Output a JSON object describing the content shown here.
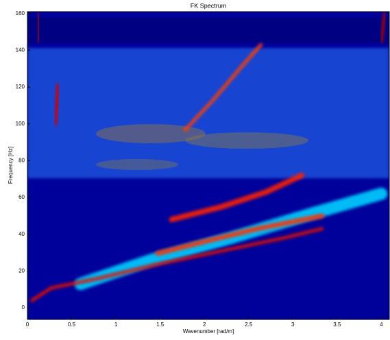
{
  "chart_data": {
    "type": "heatmap",
    "title": "FK Spectrum",
    "x_label": "Wavenumber [rad/m]",
    "y_label": "Frequency [Hz]",
    "xlim": [
      0,
      4.09
    ],
    "ylim": [
      -6.3,
      161
    ],
    "xticks": [
      0,
      0.5,
      1,
      1.5,
      2,
      2.5,
      3,
      3.5,
      4
    ],
    "yticks": [
      0,
      20,
      40,
      60,
      80,
      100,
      120,
      140,
      160
    ],
    "background": "#00009a",
    "ridges": [
      {
        "color": "#e01000",
        "width": 5,
        "x": [
          0.05,
          0.27,
          0.8,
          1.5,
          2.2,
          2.9,
          3.33
        ],
        "y": [
          4,
          10.8,
          16,
          24,
          31,
          38,
          43
        ]
      },
      {
        "color": "#ff3000",
        "width": 7,
        "x": [
          1.47,
          2.0,
          2.6,
          3.33
        ],
        "y": [
          29.5,
          36,
          43,
          50
        ]
      },
      {
        "color": "#ff2000",
        "width": 8,
        "x": [
          1.63,
          2.2,
          2.7,
          3.1
        ],
        "y": [
          48,
          55,
          63,
          72
        ]
      },
      {
        "color": "#ff4000",
        "width": 5,
        "x": [
          1.78,
          2.1,
          2.4,
          2.64
        ],
        "y": [
          96.6,
          113,
          130,
          143
        ]
      },
      {
        "color": "#d00000",
        "width": 6,
        "x": [
          0.31,
          0.33,
          0.35
        ],
        "y": [
          100,
          110,
          121
        ]
      },
      {
        "color": "#b00000",
        "width": 5,
        "x": [
          0.12,
          0.13,
          0.12
        ],
        "y": [
          145,
          153,
          160
        ]
      },
      {
        "color": "#b00000",
        "width": 5,
        "x": [
          4.0,
          4.02,
          4.04
        ],
        "y": [
          145,
          153,
          160
        ]
      },
      {
        "color": "#00d0ff",
        "width": 18,
        "x": [
          0.6,
          1.4,
          2.3,
          3.2,
          4.0
        ],
        "y": [
          13,
          26,
          38,
          51,
          62
        ]
      }
    ]
  }
}
